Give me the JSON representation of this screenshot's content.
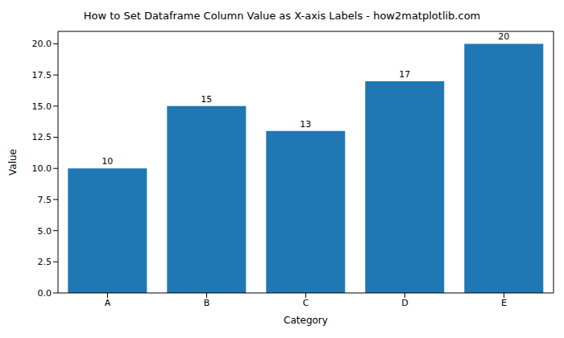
{
  "chart_data": {
    "type": "bar",
    "title": "How to Set Dataframe Column Value as X-axis Labels - how2matplotlib.com",
    "x_label": "Category",
    "y_label": "Value",
    "categories": [
      "A",
      "B",
      "C",
      "D",
      "E"
    ],
    "values": [
      10,
      15,
      13,
      17,
      20
    ],
    "color": "#1f77b4",
    "ylim": [
      0,
      21
    ],
    "yticks": [
      {
        "value": 0,
        "label": "0.0"
      },
      {
        "value": 2.5,
        "label": "2.5"
      },
      {
        "value": 5,
        "label": "5.0"
      },
      {
        "value": 7.5,
        "label": "7.5"
      },
      {
        "value": 10,
        "label": "10.0"
      },
      {
        "value": 12.5,
        "label": "12.5"
      },
      {
        "value": 15,
        "label": "15.0"
      },
      {
        "value": 17.5,
        "label": "17.5"
      },
      {
        "value": 20,
        "label": "20.0"
      }
    ],
    "grid": false,
    "data_labels": true
  }
}
